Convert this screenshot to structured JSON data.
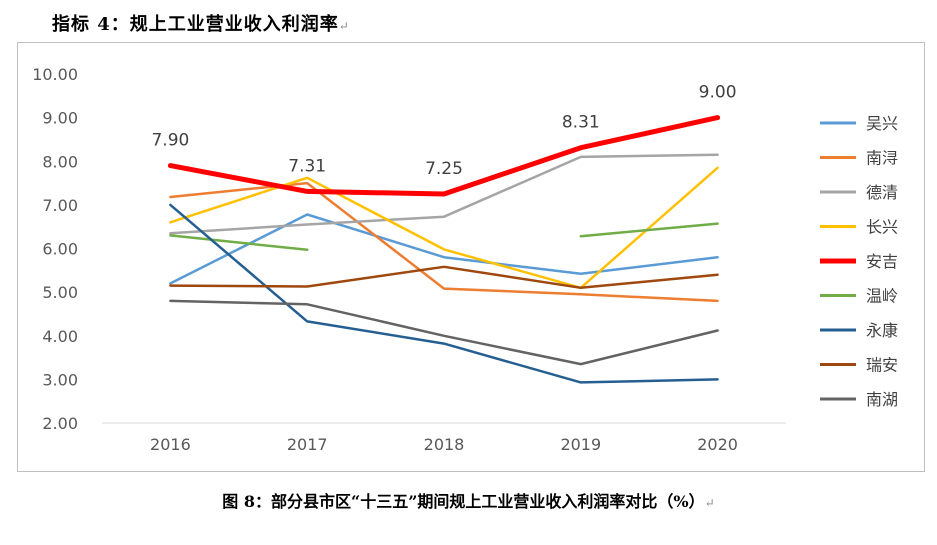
{
  "heading": "指标 4：规上工业营业收入利润率",
  "caption": "图 8：部分县市区“十三五”期间规上工业营业收入利润率对比（%）",
  "return_mark": "↵",
  "chart_data": {
    "type": "line",
    "x": [
      "2016",
      "2017",
      "2018",
      "2019",
      "2020"
    ],
    "ylim": [
      2,
      10
    ],
    "yticks": [
      "2.00",
      "3.00",
      "4.00",
      "5.00",
      "6.00",
      "7.00",
      "8.00",
      "9.00",
      "10.00"
    ],
    "grid": false,
    "legend": "right",
    "series": [
      {
        "name": "吴兴",
        "color": "#5b9bd5",
        "width": 2.5,
        "values": [
          5.2,
          6.78,
          5.8,
          5.42,
          5.8
        ]
      },
      {
        "name": "南浔",
        "color": "#ed7d31",
        "width": 2.5,
        "values": [
          7.18,
          7.5,
          5.08,
          4.95,
          4.8
        ]
      },
      {
        "name": "德清",
        "color": "#a5a5a5",
        "width": 2.5,
        "values": [
          6.35,
          6.55,
          6.73,
          8.1,
          8.15
        ]
      },
      {
        "name": "长兴",
        "color": "#ffc000",
        "width": 2.5,
        "values": [
          6.6,
          7.62,
          5.98,
          5.1,
          7.85
        ]
      },
      {
        "name": "安吉",
        "color": "#ff0000",
        "width": 5,
        "values": [
          7.9,
          7.31,
          7.25,
          8.31,
          9.0
        ]
      },
      {
        "name": "温岭",
        "color": "#70ad47",
        "width": 2.5,
        "values": [
          6.3,
          5.97,
          null,
          6.28,
          6.57
        ]
      },
      {
        "name": "永康",
        "color": "#255e91",
        "width": 2.5,
        "values": [
          7.0,
          4.33,
          3.82,
          2.93,
          3.0
        ]
      },
      {
        "name": "瑞安",
        "color": "#9e480e",
        "width": 2.5,
        "values": [
          5.15,
          5.13,
          5.58,
          5.1,
          5.4
        ]
      },
      {
        "name": "南湖",
        "color": "#636363",
        "width": 2.5,
        "values": [
          4.8,
          4.72,
          4.0,
          3.35,
          4.12
        ]
      }
    ],
    "data_labels": [
      {
        "text": "7.90",
        "series": "安吉",
        "x": "2016"
      },
      {
        "text": "7.31",
        "series": "安吉",
        "x": "2017"
      },
      {
        "text": "7.25",
        "series": "安吉",
        "x": "2018"
      },
      {
        "text": "8.31",
        "series": "安吉",
        "x": "2019"
      },
      {
        "text": "9.00",
        "series": "安吉",
        "x": "2020"
      }
    ]
  }
}
